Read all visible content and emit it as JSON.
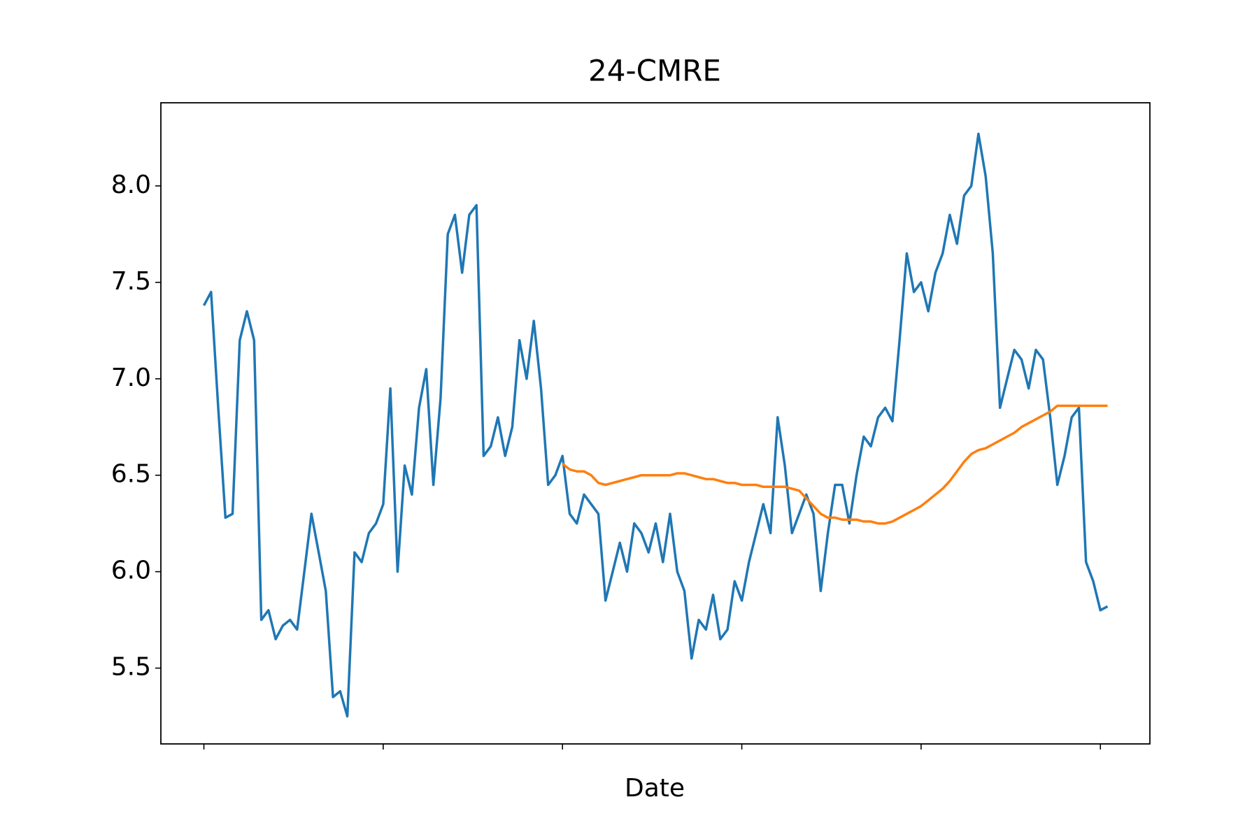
{
  "chart_data": {
    "type": "line",
    "title": "24-CMRE",
    "x_label": "Date",
    "categories": [
      null,
      null,
      null,
      null,
      null,
      null,
      null,
      null,
      null,
      null,
      null,
      null,
      null,
      null,
      null,
      null,
      null,
      null,
      null,
      null,
      null,
      null,
      null,
      null,
      null,
      null,
      null,
      null,
      null,
      null,
      null,
      null,
      null,
      null,
      null,
      null,
      null,
      null,
      null,
      null,
      null,
      null,
      null,
      null,
      null,
      null,
      null,
      null,
      null,
      null,
      null,
      null,
      null,
      null,
      null,
      null,
      null,
      null,
      null,
      null,
      null,
      null,
      null,
      null,
      null,
      null,
      null,
      null,
      null,
      null,
      null,
      null,
      null,
      null,
      null,
      null,
      null,
      null,
      null,
      null,
      null,
      null,
      null,
      null,
      null,
      null,
      null,
      null,
      null,
      null,
      null,
      null,
      null,
      null,
      null,
      null,
      null,
      null,
      null,
      null,
      null,
      null,
      null,
      null,
      null,
      null,
      null,
      null,
      null,
      null,
      null,
      null,
      null,
      null,
      null,
      null,
      null,
      null,
      null,
      null,
      null,
      null,
      null,
      null,
      null,
      null,
      null
    ],
    "series": [
      {
        "color": "#1f77b4",
        "values": [
          7.38,
          7.45,
          6.85,
          6.28,
          6.3,
          7.2,
          7.35,
          7.2,
          5.75,
          5.8,
          5.65,
          5.72,
          5.75,
          5.7,
          6.0,
          6.3,
          6.1,
          5.9,
          5.35,
          5.38,
          5.25,
          6.1,
          6.05,
          6.2,
          6.25,
          6.35,
          6.95,
          6.0,
          6.55,
          6.4,
          6.85,
          7.05,
          6.45,
          6.9,
          7.75,
          7.85,
          7.55,
          7.85,
          7.9,
          6.6,
          6.65,
          6.8,
          6.6,
          6.75,
          7.2,
          7.0,
          7.3,
          6.95,
          6.45,
          6.5,
          6.6,
          6.3,
          6.25,
          6.4,
          6.35,
          6.3,
          5.85,
          6.0,
          6.15,
          6.0,
          6.25,
          6.2,
          6.1,
          6.25,
          6.05,
          6.3,
          6.0,
          5.9,
          5.55,
          5.75,
          5.7,
          5.88,
          5.65,
          5.7,
          5.95,
          5.85,
          6.05,
          6.2,
          6.35,
          6.2,
          6.8,
          6.55,
          6.2,
          6.3,
          6.4,
          6.3,
          5.9,
          6.2,
          6.45,
          6.45,
          6.25,
          6.5,
          6.7,
          6.65,
          6.8,
          6.85,
          6.78,
          7.2,
          7.65,
          7.45,
          7.5,
          7.35,
          7.55,
          7.65,
          7.85,
          7.7,
          7.95,
          8.0,
          8.27,
          8.05,
          7.65,
          6.85,
          7.0,
          7.15,
          7.1,
          6.95,
          7.15,
          7.1,
          6.8,
          6.45,
          6.6,
          6.8,
          6.85,
          6.05,
          5.95,
          5.8,
          5.82
        ]
      },
      {
        "color": "#ff7f0e",
        "values": [
          null,
          null,
          null,
          null,
          null,
          null,
          null,
          null,
          null,
          null,
          null,
          null,
          null,
          null,
          null,
          null,
          null,
          null,
          null,
          null,
          null,
          null,
          null,
          null,
          null,
          null,
          null,
          null,
          null,
          null,
          null,
          null,
          null,
          null,
          null,
          null,
          null,
          null,
          null,
          null,
          null,
          null,
          null,
          null,
          null,
          null,
          null,
          null,
          null,
          null,
          6.56,
          6.53,
          6.52,
          6.52,
          6.5,
          6.46,
          6.45,
          6.46,
          6.47,
          6.48,
          6.49,
          6.5,
          6.5,
          6.5,
          6.5,
          6.5,
          6.51,
          6.51,
          6.5,
          6.49,
          6.48,
          6.48,
          6.47,
          6.46,
          6.46,
          6.45,
          6.45,
          6.45,
          6.44,
          6.44,
          6.44,
          6.44,
          6.43,
          6.42,
          6.38,
          6.34,
          6.3,
          6.28,
          6.28,
          6.27,
          6.27,
          6.27,
          6.26,
          6.26,
          6.25,
          6.25,
          6.26,
          6.28,
          6.3,
          6.32,
          6.34,
          6.37,
          6.4,
          6.43,
          6.47,
          6.52,
          6.57,
          6.61,
          6.63,
          6.64,
          6.66,
          6.68,
          6.7,
          6.72,
          6.75,
          6.77,
          6.79,
          6.81,
          6.83,
          6.86,
          6.86,
          6.86,
          6.86,
          6.86,
          6.86,
          6.86,
          6.86
        ]
      }
    ],
    "xlim": [
      -6,
      131.9
    ],
    "xticks": [
      0,
      25,
      50,
      75,
      100,
      125
    ],
    "ylim": [
      5.107,
      8.431
    ],
    "yticks": [
      5.5,
      {
        "value": 6,
        "label": "6.0"
      },
      6.5,
      {
        "value": 7,
        "label": "7.0"
      },
      7.5,
      {
        "value": 8,
        "label": "8.0"
      }
    ]
  }
}
